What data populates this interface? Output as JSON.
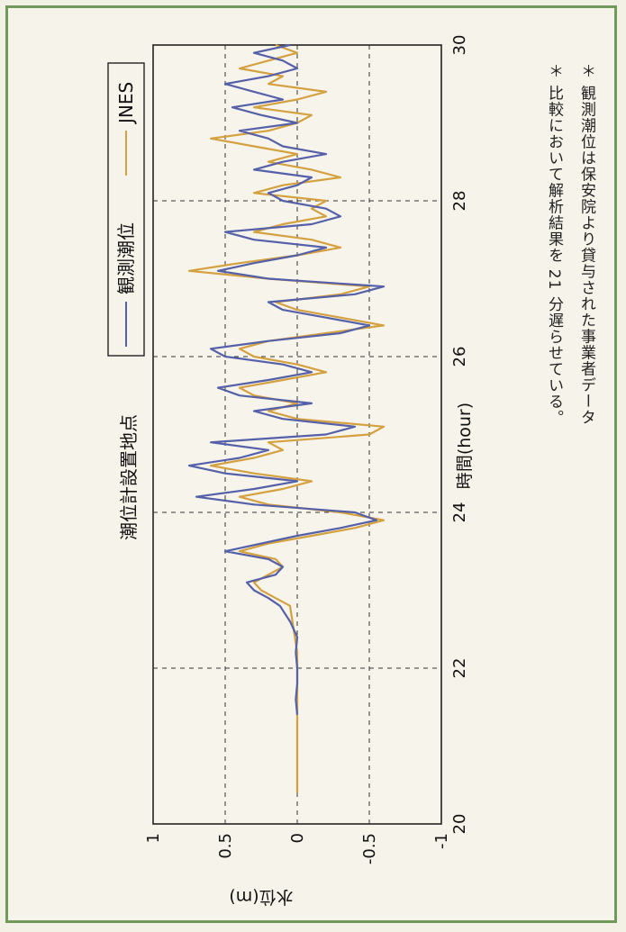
{
  "colors": {
    "border": "#6f9a5a",
    "observed": "#5560a8",
    "jnes": "#d4a140"
  },
  "chart_data": {
    "type": "line",
    "title": "潮位計設置地点",
    "xlabel": "時間(hour)",
    "ylabel": "水位(m)",
    "xlim": [
      20,
      30
    ],
    "ylim": [
      -1,
      1
    ],
    "x_ticks": [
      "20",
      "22",
      "24",
      "26",
      "28",
      "30"
    ],
    "y_ticks": [
      "-1",
      "-0.5",
      "0",
      "0.5",
      "1"
    ],
    "grid": true,
    "legend_position": "top",
    "series": [
      {
        "name": "観測潮位",
        "color": "#5560a8",
        "x": [
          21.4,
          21.6,
          21.8,
          22.0,
          22.2,
          22.4,
          22.6,
          22.8,
          22.9,
          23.0,
          23.1,
          23.2,
          23.3,
          23.4,
          23.5,
          23.6,
          23.7,
          23.8,
          23.9,
          24.0,
          24.1,
          24.2,
          24.3,
          24.4,
          24.5,
          24.6,
          24.7,
          24.8,
          24.9,
          25.0,
          25.1,
          25.2,
          25.3,
          25.4,
          25.5,
          25.6,
          25.7,
          25.8,
          25.9,
          26.0,
          26.1,
          26.2,
          26.3,
          26.4,
          26.5,
          26.6,
          26.7,
          26.8,
          26.9,
          27.0,
          27.1,
          27.2,
          27.3,
          27.4,
          27.5,
          27.6,
          27.7,
          27.8,
          27.9,
          28.0,
          28.1,
          28.2,
          28.3,
          28.4,
          28.5,
          28.6,
          28.7,
          28.8,
          28.9,
          29.0,
          29.1,
          29.2,
          29.3,
          29.4,
          29.5,
          29.6,
          29.7,
          29.8,
          29.9,
          30.0
        ],
        "values": [
          0.0,
          0.01,
          0.0,
          0.0,
          0.01,
          0.0,
          0.05,
          0.12,
          0.2,
          0.3,
          0.35,
          0.15,
          0.1,
          0.2,
          0.5,
          0.25,
          0.0,
          -0.3,
          -0.55,
          -0.4,
          0.3,
          0.7,
          0.3,
          0.0,
          0.5,
          0.75,
          0.4,
          0.2,
          0.6,
          -0.2,
          -0.4,
          0.1,
          0.3,
          -0.1,
          0.4,
          0.55,
          0.2,
          -0.1,
          0.1,
          0.5,
          0.6,
          0.2,
          -0.3,
          -0.5,
          -0.2,
          0.1,
          0.2,
          -0.4,
          -0.6,
          0.2,
          0.55,
          0.3,
          0.0,
          -0.2,
          0.3,
          0.5,
          -0.1,
          -0.3,
          -0.2,
          0.1,
          0.2,
          0.0,
          -0.1,
          0.3,
          0.1,
          -0.2,
          0.1,
          0.2,
          0.4,
          0.0,
          0.25,
          0.45,
          0.1,
          0.3,
          0.5,
          0.2,
          0.0,
          0.1,
          0.3,
          0.05
        ]
      },
      {
        "name": "JNES",
        "color": "#d4a140",
        "x": [
          20.4,
          21.0,
          21.6,
          22.2,
          22.8,
          22.9,
          23.0,
          23.1,
          23.2,
          23.3,
          23.4,
          23.5,
          23.6,
          23.7,
          23.8,
          23.9,
          24.0,
          24.1,
          24.2,
          24.3,
          24.4,
          24.5,
          24.6,
          24.7,
          24.8,
          24.9,
          25.0,
          25.1,
          25.2,
          25.3,
          25.4,
          25.5,
          25.6,
          25.7,
          25.8,
          25.9,
          26.0,
          26.1,
          26.2,
          26.3,
          26.4,
          26.5,
          26.6,
          26.7,
          26.8,
          26.9,
          27.0,
          27.1,
          27.2,
          27.3,
          27.4,
          27.5,
          27.6,
          27.7,
          27.8,
          27.9,
          28.0,
          28.1,
          28.2,
          28.3,
          28.4,
          28.5,
          28.6,
          28.7,
          28.8,
          28.9,
          29.0,
          29.1,
          29.2,
          29.3,
          29.4,
          29.5,
          29.6,
          29.7,
          29.8,
          29.9,
          30.0
        ],
        "values": [
          0.0,
          0.0,
          0.0,
          0.0,
          0.05,
          0.15,
          0.25,
          0.3,
          0.2,
          0.1,
          0.15,
          0.4,
          0.2,
          -0.1,
          -0.4,
          -0.6,
          -0.3,
          0.2,
          0.4,
          0.1,
          -0.1,
          0.3,
          0.6,
          0.3,
          0.1,
          0.2,
          -0.5,
          -0.6,
          0.0,
          0.2,
          0.0,
          0.3,
          0.4,
          0.1,
          -0.2,
          0.0,
          0.3,
          0.4,
          0.2,
          -0.2,
          -0.6,
          -0.3,
          0.0,
          0.15,
          -0.3,
          -0.5,
          0.2,
          0.75,
          0.4,
          0.0,
          -0.3,
          -0.1,
          0.3,
          0.1,
          -0.2,
          -0.1,
          -0.2,
          0.3,
          0.1,
          -0.3,
          -0.1,
          0.2,
          0.0,
          0.3,
          0.6,
          0.2,
          0.0,
          -0.1,
          0.3,
          0.0,
          -0.2,
          0.2,
          0.1,
          0.4,
          0.2,
          0.0,
          0.15
        ]
      }
    ]
  },
  "notes": [
    "＊ 観測潮位は保安院より貸与された事業者データ",
    "＊ 比較において解析結果を 21 分遅らせている。"
  ]
}
